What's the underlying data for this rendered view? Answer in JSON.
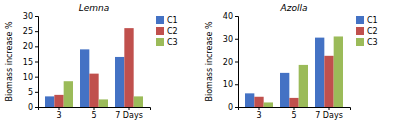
{
  "chart_data": [
    {
      "type": "bar",
      "title": "Lemna",
      "categories": [
        "3",
        "5",
        "7 Days"
      ],
      "series": [
        {
          "name": "C1",
          "color": "#4472C4",
          "values": [
            3.5,
            19.0,
            16.5
          ]
        },
        {
          "name": "C2",
          "color": "#C0504D",
          "values": [
            4.0,
            11.0,
            26.0
          ]
        },
        {
          "name": "C3",
          "color": "#9BBB59",
          "values": [
            8.5,
            2.5,
            3.5
          ]
        }
      ],
      "ylabel": "Biomass increase %",
      "ylim": [
        0,
        30
      ],
      "yticks": [
        0,
        5,
        10,
        15,
        20,
        25,
        30
      ],
      "legend": "right"
    },
    {
      "type": "bar",
      "title": "Azolla",
      "categories": [
        "3",
        "5",
        "7 Days"
      ],
      "series": [
        {
          "name": "C1",
          "color": "#4472C4",
          "values": [
            6.0,
            15.0,
            30.5
          ]
        },
        {
          "name": "C2",
          "color": "#C0504D",
          "values": [
            4.5,
            4.0,
            22.5
          ]
        },
        {
          "name": "C3",
          "color": "#9BBB59",
          "values": [
            2.0,
            18.5,
            31.0
          ]
        }
      ],
      "ylabel": "Biomass increase %",
      "ylim": [
        0,
        40
      ],
      "yticks": [
        0,
        10,
        20,
        30,
        40
      ],
      "legend": "right"
    }
  ]
}
